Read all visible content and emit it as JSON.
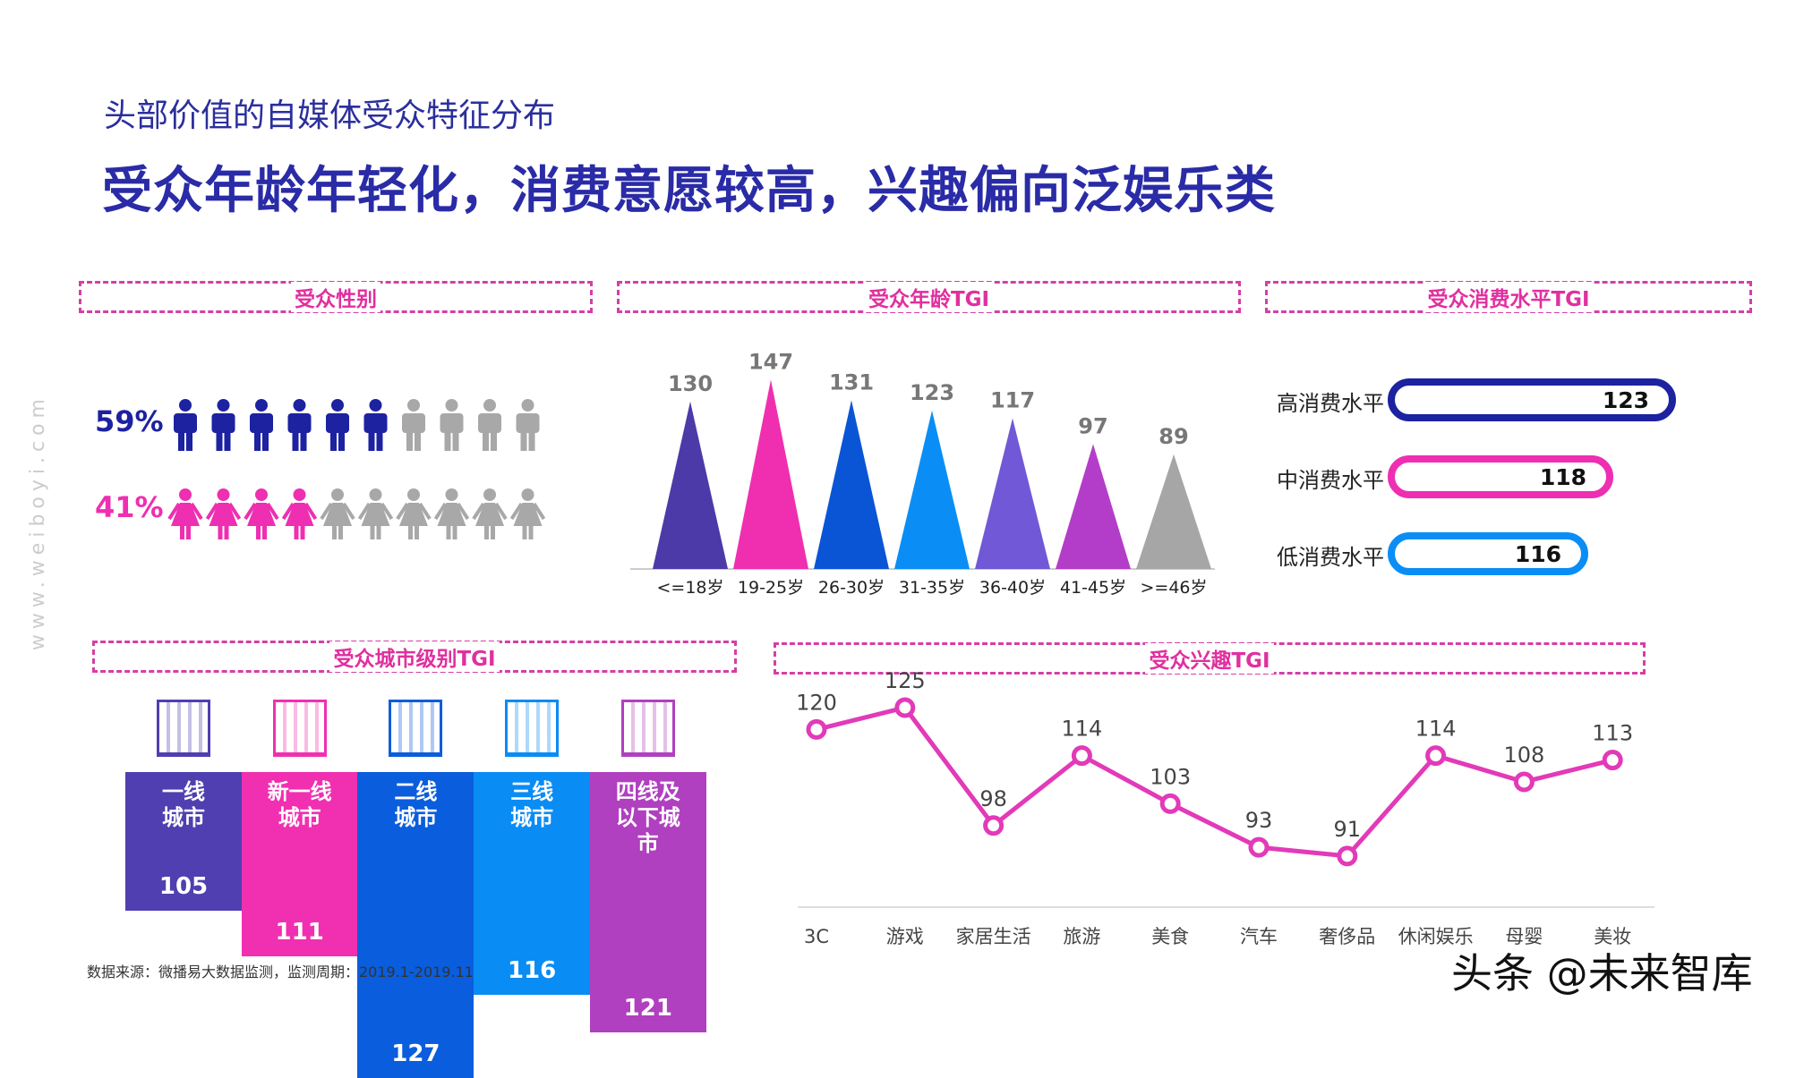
{
  "header": {
    "subtitle": "头部价值的自媒体受众特征分布",
    "title": "受众年龄年轻化，消费意愿较高，兴趣偏向泛娱乐类"
  },
  "side_watermark": "www.weiboyi.com",
  "colors": {
    "male": "#1c22a0",
    "female": "#ee2fb2",
    "inactive": "#a8a8a8",
    "dash": "#d43fa6"
  },
  "chart_data": [
    {
      "type": "pictogram",
      "title": "受众性别",
      "series": [
        {
          "label": "59%",
          "value": 59,
          "icon": "male-icon",
          "filled": 6,
          "total": 10
        },
        {
          "label": "41%",
          "value": 41,
          "icon": "female-icon",
          "filled": 4,
          "total": 10
        }
      ]
    },
    {
      "type": "bar",
      "title": "受众年龄TGI",
      "categories": [
        "<=18岁",
        "19-25岁",
        "26-30岁",
        "31-35岁",
        "36-40岁",
        "41-45岁",
        ">=46岁"
      ],
      "values": [
        130,
        147,
        131,
        123,
        117,
        97,
        89
      ],
      "colors": [
        "#4b3aa8",
        "#ef2fb0",
        "#0a55d6",
        "#0a8ef5",
        "#7158d6",
        "#b33dc8",
        "#a6a6a6"
      ]
    },
    {
      "type": "bar",
      "title": "受众消费水平TGI",
      "categories": [
        "高消费水平",
        "中消费水平",
        "低消费水平"
      ],
      "values": [
        123,
        118,
        116
      ],
      "colors": [
        "#1c22a0",
        "#ee2fb2",
        "#0a8ef5"
      ]
    },
    {
      "type": "bar",
      "title": "受众城市级别TGI",
      "categories": [
        "一线城市",
        "新一线城市",
        "二线城市",
        "三线城市",
        "四线及以下城市"
      ],
      "values": [
        105,
        111,
        127,
        116,
        121
      ],
      "colors": [
        "#4f3fb0",
        "#f030b0",
        "#0a5ddc",
        "#0a8cf5",
        "#b040c0"
      ]
    },
    {
      "type": "line",
      "title": "受众兴趣TGI",
      "categories": [
        "3C",
        "游戏",
        "家居生活",
        "旅游",
        "美食",
        "汽车",
        "奢侈品",
        "休闲娱乐",
        "母婴",
        "美妆"
      ],
      "values": [
        120,
        125,
        98,
        114,
        103,
        93,
        91,
        114,
        108,
        113
      ],
      "color": "#e23ab8"
    }
  ],
  "city_labels": [
    "一线\n城市",
    "新一线\n城市",
    "二线\n城市",
    "三线\n城市",
    "四线及\n以下城\n市"
  ],
  "footer": {
    "source": "数据来源：微播易大数据监测，监测周期：2019.1-2019.11",
    "watermark": "头条 @未来智库"
  }
}
